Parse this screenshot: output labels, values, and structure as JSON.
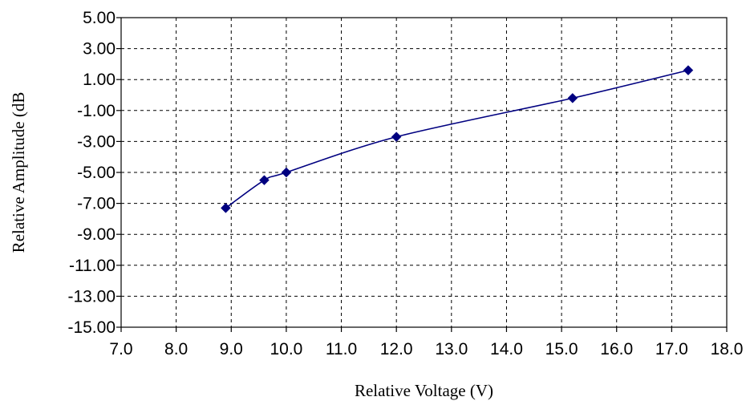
{
  "chart_data": {
    "type": "scatter",
    "title": "",
    "xlabel": "Relative Voltage (V)",
    "ylabel": "Relative Amplitude (dB",
    "xlim": [
      7.0,
      18.0
    ],
    "ylim": [
      -15.0,
      5.0
    ],
    "x_tick_values": [
      7.0,
      8.0,
      9.0,
      10.0,
      11.0,
      12.0,
      13.0,
      14.0,
      15.0,
      16.0,
      17.0,
      18.0
    ],
    "x_tick_labels": [
      "7.0",
      "8.0",
      "9.0",
      "10.0",
      "11.0",
      "12.0",
      "13.0",
      "14.0",
      "15.0",
      "16.0",
      "17.0",
      "18.0"
    ],
    "y_tick_values": [
      5.0,
      3.0,
      1.0,
      -1.0,
      -3.0,
      -5.0,
      -7.0,
      -9.0,
      -11.0,
      -13.0,
      -15.0
    ],
    "y_tick_labels": [
      "5.00",
      "3.00",
      "1.00",
      "-1.00",
      "-3.00",
      "-5.00",
      "-7.00",
      "-9.00",
      "-11.00",
      "-13.00",
      "-15.00"
    ],
    "grid": true,
    "legend": "none",
    "series": [
      {
        "x": [
          8.9,
          9.6,
          10.0,
          12.0,
          15.2,
          17.3
        ],
        "y": [
          -7.3,
          -5.5,
          -5.0,
          -2.7,
          -0.2,
          1.6
        ],
        "marker": "diamond",
        "line": "smooth",
        "color": "#000080"
      }
    ]
  }
}
